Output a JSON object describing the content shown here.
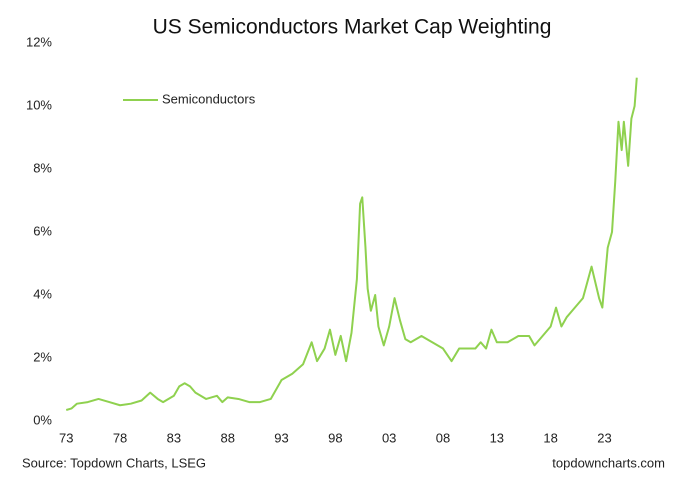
{
  "chart_data": {
    "type": "line",
    "title": "US Semiconductors Market Cap Weighting",
    "source": "Source: Topdown Charts, LSEG",
    "credit": "topdowncharts.com",
    "legend": "top-left",
    "xlim": [
      1972.7,
      2026.3
    ],
    "xticks": [
      {
        "value": 1973,
        "label": "73"
      },
      {
        "value": 1978,
        "label": "78"
      },
      {
        "value": 1983,
        "label": "83"
      },
      {
        "value": 1988,
        "label": "88"
      },
      {
        "value": 1993,
        "label": "93"
      },
      {
        "value": 1998,
        "label": "98"
      },
      {
        "value": 2003,
        "label": "03"
      },
      {
        "value": 2008,
        "label": "08"
      },
      {
        "value": 2013,
        "label": "13"
      },
      {
        "value": 2018,
        "label": "18"
      },
      {
        "value": 2023,
        "label": "23"
      }
    ],
    "ylim": [
      0,
      12
    ],
    "yticks": [
      {
        "value": 0,
        "label": "0%"
      },
      {
        "value": 2,
        "label": "2%"
      },
      {
        "value": 4,
        "label": "4%"
      },
      {
        "value": 6,
        "label": "6%"
      },
      {
        "value": 8,
        "label": "8%"
      },
      {
        "value": 10,
        "label": "10%"
      },
      {
        "value": 12,
        "label": "12%"
      }
    ],
    "x": [
      1973.0,
      1973.5,
      1974.0,
      1975.0,
      1976.0,
      1977.0,
      1978.0,
      1979.0,
      1980.0,
      1980.8,
      1981.5,
      1982.0,
      1983.0,
      1983.5,
      1984.0,
      1984.5,
      1985.0,
      1986.0,
      1987.0,
      1987.5,
      1988.0,
      1989.0,
      1990.0,
      1991.0,
      1992.0,
      1992.5,
      1993.0,
      1994.0,
      1995.0,
      1995.8,
      1996.3,
      1997.0,
      1997.5,
      1998.0,
      1998.5,
      1999.0,
      1999.5,
      2000.0,
      2000.3,
      2000.5,
      2000.8,
      2001.0,
      2001.3,
      2001.7,
      2002.0,
      2002.5,
      2003.0,
      2003.5,
      2004.0,
      2004.5,
      2005.0,
      2006.0,
      2007.0,
      2008.0,
      2008.8,
      2009.5,
      2010.0,
      2011.0,
      2011.5,
      2012.0,
      2012.5,
      2013.0,
      2014.0,
      2015.0,
      2016.0,
      2016.5,
      2017.0,
      2018.0,
      2018.5,
      2019.0,
      2019.5,
      2020.0,
      2021.0,
      2021.8,
      2022.5,
      2022.8,
      2023.3,
      2023.7,
      2024.0,
      2024.3,
      2024.6,
      2024.8,
      2025.2,
      2025.5,
      2025.8,
      2026.0
    ],
    "series": [
      {
        "name": "Semiconductors",
        "color": "#8fd14f",
        "values": [
          0.35,
          0.4,
          0.55,
          0.6,
          0.7,
          0.6,
          0.5,
          0.55,
          0.65,
          0.9,
          0.7,
          0.6,
          0.8,
          1.1,
          1.2,
          1.1,
          0.9,
          0.7,
          0.8,
          0.6,
          0.75,
          0.7,
          0.6,
          0.6,
          0.7,
          1.0,
          1.3,
          1.5,
          1.8,
          2.5,
          1.9,
          2.3,
          2.9,
          2.1,
          2.7,
          1.9,
          2.8,
          4.5,
          6.9,
          7.1,
          5.5,
          4.2,
          3.5,
          4.0,
          3.0,
          2.4,
          3.0,
          3.9,
          3.2,
          2.6,
          2.5,
          2.7,
          2.5,
          2.3,
          1.9,
          2.3,
          2.3,
          2.3,
          2.5,
          2.3,
          2.9,
          2.5,
          2.5,
          2.7,
          2.7,
          2.4,
          2.6,
          3.0,
          3.6,
          3.0,
          3.3,
          3.5,
          3.9,
          4.9,
          3.9,
          3.6,
          5.5,
          6.0,
          7.6,
          9.5,
          8.6,
          9.5,
          8.1,
          9.6,
          10.0,
          10.9
        ]
      }
    ]
  }
}
